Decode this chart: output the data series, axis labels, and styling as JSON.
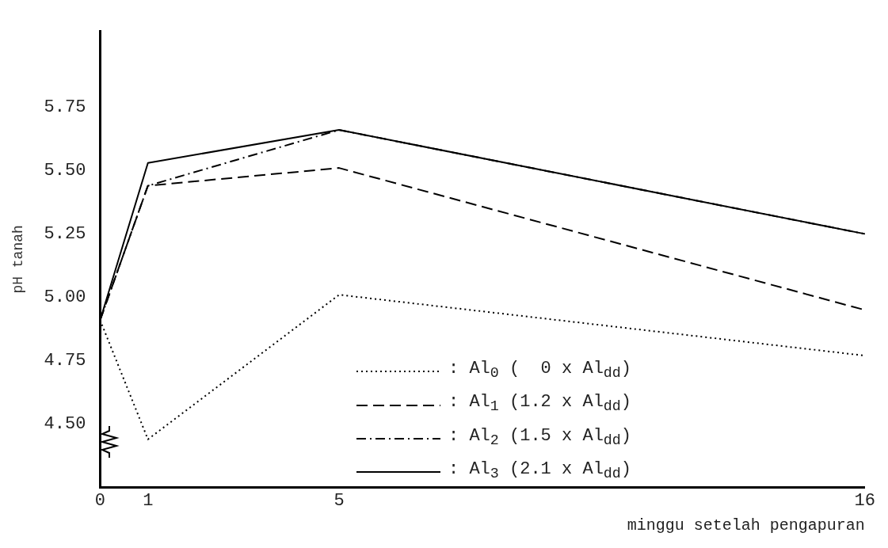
{
  "chart_data": {
    "type": "line",
    "xlabel": "minggu setelah pengapuran",
    "ylabel": "pH tanah",
    "x": [
      0,
      1,
      5,
      16
    ],
    "xlim": [
      0,
      16
    ],
    "xticks": [
      0,
      1,
      5,
      16
    ],
    "ylim": [
      4.25,
      6.05
    ],
    "yticks": [
      {
        "value": 4.5,
        "label": "4.50"
      },
      4.75,
      {
        "value": 5,
        "label": "5.00"
      },
      5.25,
      {
        "value": 5.5,
        "label": "5.50"
      },
      5.75
    ],
    "grid": false,
    "legend": "bottom",
    "marker": "none",
    "series": [
      {
        "name": ": Al$_{0}$ (  0 x Al$_{dd}$)",
        "color": "#000000",
        "line_style": "dotted",
        "values": [
          4.91,
          4.44,
          5.01,
          4.77
        ]
      },
      {
        "name": ": Al$_{1}$ (1.2 x Al$_{dd}$)",
        "color": "#000000",
        "line_style": "dashed",
        "values": [
          4.91,
          5.44,
          5.51,
          4.95
        ]
      },
      {
        "name": ": Al$_{2}$ (1.5 x Al$_{dd}$)",
        "color": "#000000",
        "line_style": "dashdot",
        "values": [
          4.91,
          5.44,
          5.66,
          5.25
        ]
      },
      {
        "name": ": Al$_{3}$ (2.1 x Al$_{dd}$)",
        "color": "#000000",
        "line_style": "solid",
        "values": [
          4.91,
          5.53,
          5.66,
          5.25
        ]
      }
    ]
  }
}
